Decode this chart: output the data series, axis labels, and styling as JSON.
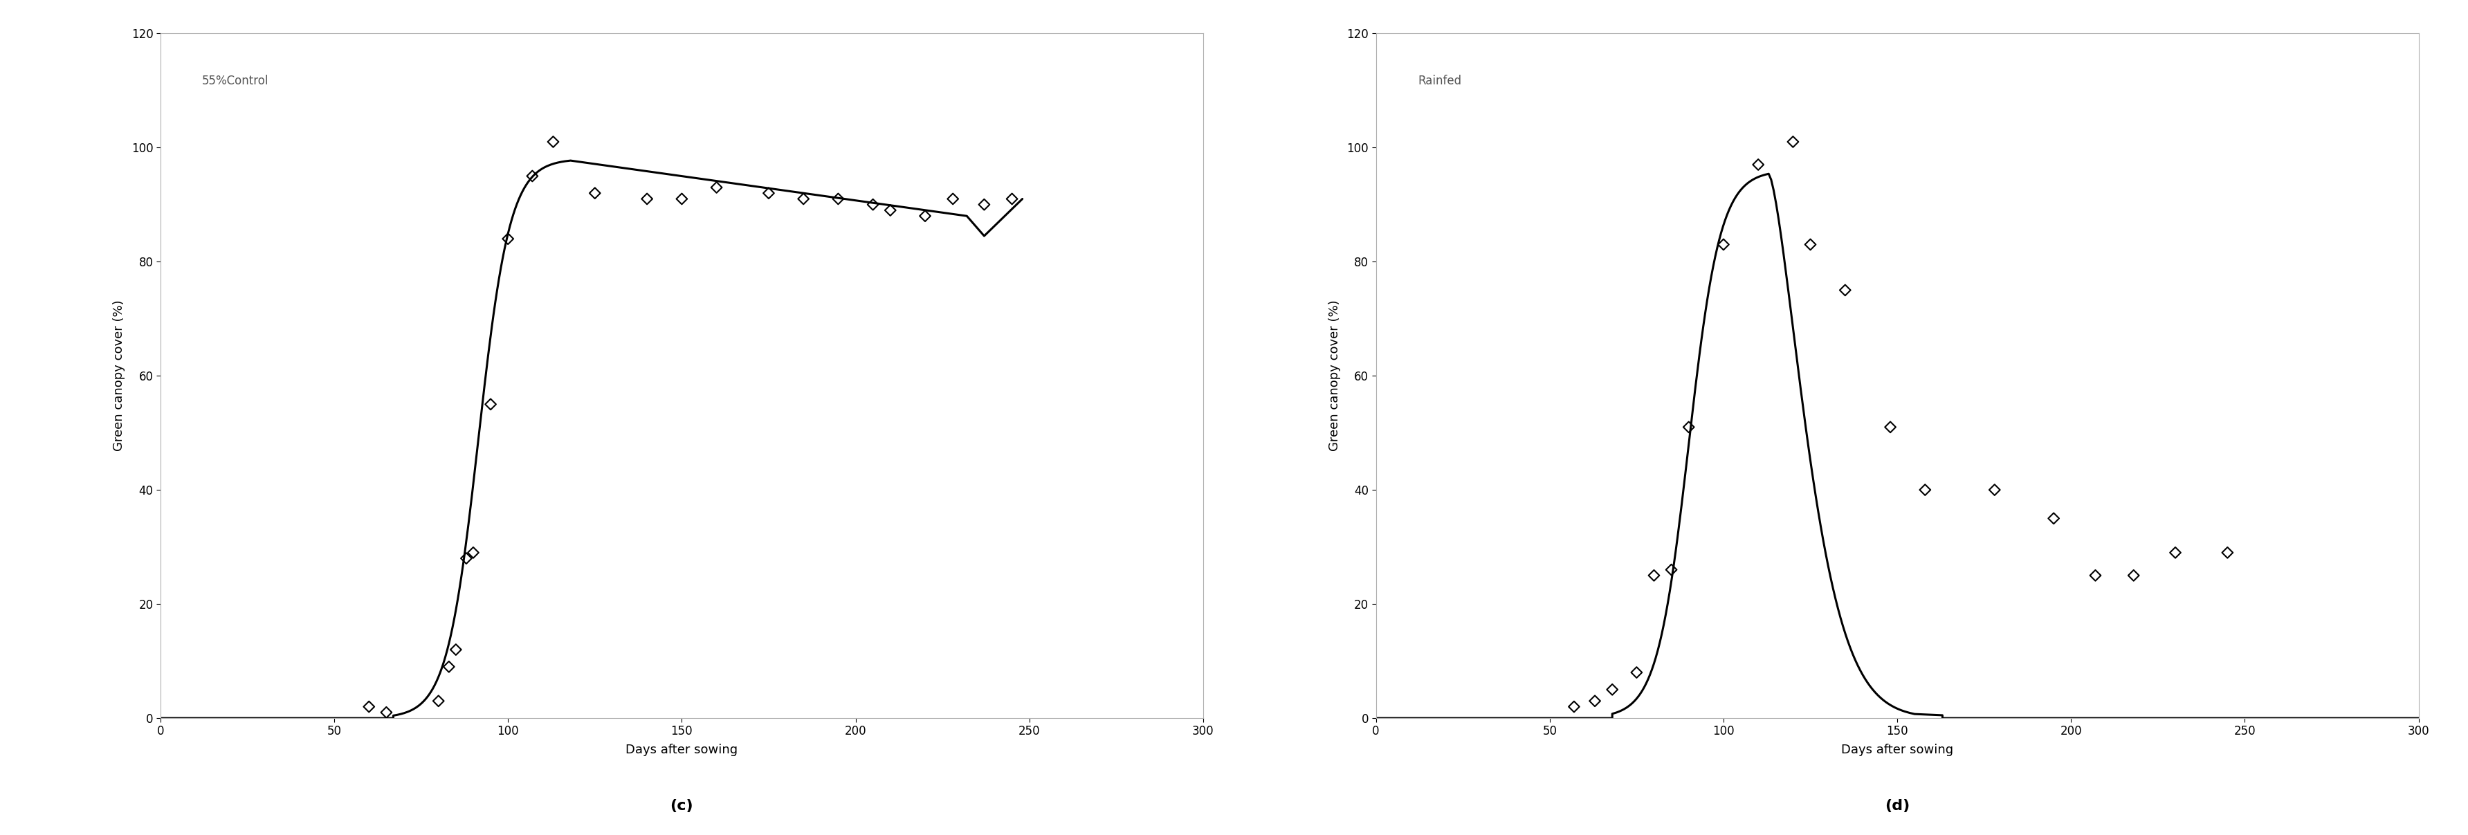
{
  "panel_c": {
    "label": "55%Control",
    "scatter_x": [
      60,
      65,
      80,
      83,
      85,
      88,
      90,
      95,
      100,
      107,
      113,
      125,
      140,
      150,
      160,
      175,
      185,
      195,
      205,
      210,
      220,
      228,
      237,
      245
    ],
    "scatter_y": [
      2,
      1,
      3,
      9,
      12,
      28,
      29,
      55,
      84,
      95,
      101,
      92,
      91,
      91,
      93,
      92,
      91,
      91,
      90,
      89,
      88,
      91,
      90,
      91
    ],
    "xlabel": "Days after sowing",
    "ylabel": "Green canopy cover (%)",
    "xlim": [
      0,
      300
    ],
    "ylim": [
      0,
      120
    ],
    "xticks": [
      0,
      50,
      100,
      150,
      200,
      250,
      300
    ],
    "yticks": [
      0,
      20,
      40,
      60,
      80,
      100,
      120
    ]
  },
  "panel_d": {
    "label": "Rainfed",
    "scatter_x": [
      57,
      63,
      68,
      75,
      80,
      85,
      90,
      100,
      110,
      120,
      125,
      135,
      148,
      158,
      178,
      195,
      207,
      218,
      230,
      245
    ],
    "scatter_y": [
      2,
      3,
      5,
      8,
      25,
      26,
      51,
      83,
      97,
      101,
      83,
      75,
      51,
      40,
      40,
      35,
      25,
      25,
      29,
      29
    ],
    "xlabel": "Days after sowing",
    "ylabel": "Green canopy cover (%)",
    "xlim": [
      0,
      300
    ],
    "ylim": [
      0,
      120
    ],
    "xticks": [
      0,
      50,
      100,
      150,
      200,
      250,
      300
    ],
    "yticks": [
      0,
      20,
      40,
      60,
      80,
      100,
      120
    ]
  },
  "subplot_labels": [
    "(c)",
    "(d)"
  ],
  "line_color": "#000000",
  "scatter_facecolor": "none",
  "scatter_edgecolor": "#000000",
  "background_color": "#ffffff",
  "line_width": 2.2,
  "marker_size": 8,
  "label_fontsize": 13,
  "tick_fontsize": 12,
  "annotation_fontsize": 12,
  "subplot_label_fontsize": 16
}
